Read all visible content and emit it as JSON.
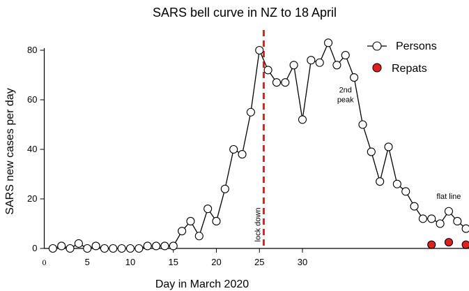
{
  "chart_data": {
    "type": "scatter",
    "title": "SARS bell curve in NZ to 18 April",
    "xlabel": "Day in March 2020",
    "ylabel": "SARS new cases per day",
    "xlim": [
      0,
      49
    ],
    "ylim": [
      0,
      80
    ],
    "x_ticks": [
      0,
      5,
      10,
      15,
      20,
      25,
      30
    ],
    "y_ticks": [
      0,
      20,
      40,
      60,
      80
    ],
    "grid": false,
    "legend_position": "top-right",
    "series": [
      {
        "name": "Persons",
        "style": "line-open-circles",
        "color": "#000000",
        "fill": "#ffffff",
        "x": [
          1,
          2,
          3,
          4,
          5,
          6,
          7,
          8,
          9,
          10,
          11,
          12,
          13,
          14,
          15,
          16,
          17,
          18,
          19,
          20,
          21,
          22,
          23,
          24,
          25,
          26,
          27,
          28,
          29,
          30,
          31,
          32,
          33,
          34,
          35,
          36,
          37,
          38,
          39,
          40,
          41,
          42,
          43,
          44,
          45,
          46,
          47,
          48,
          49
        ],
        "y": [
          0,
          1,
          0,
          2,
          0,
          1,
          0,
          0,
          0,
          0,
          0,
          1,
          1,
          1,
          1,
          7,
          11,
          5,
          16,
          11,
          24,
          40,
          38,
          55,
          80,
          72,
          67,
          67,
          74,
          52,
          76,
          75,
          83,
          74,
          78,
          69,
          50,
          39,
          27,
          41,
          26,
          23,
          17,
          12,
          12,
          10,
          15,
          11,
          8
        ]
      },
      {
        "name": "Repats",
        "style": "filled-circles",
        "color": "#000000",
        "fill": "#e02020",
        "x": [
          45,
          47,
          49
        ],
        "y": [
          1.5,
          2.5,
          1.5
        ]
      }
    ],
    "reference_line": {
      "x": 25.5,
      "label": "lock down",
      "color": "#e02020"
    },
    "annotations": [
      {
        "text_lines": [
          "2nd",
          "peak"
        ],
        "x": 35,
        "y": 63
      },
      {
        "text_lines": [
          "flat line"
        ],
        "x": 47,
        "y": 20
      }
    ]
  }
}
